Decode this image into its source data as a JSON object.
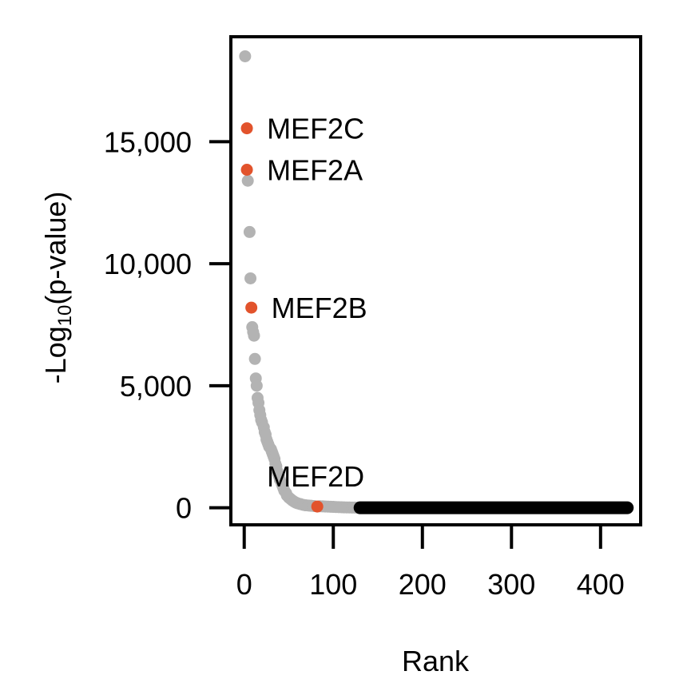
{
  "chart_data": {
    "type": "scatter",
    "xlabel": "Rank",
    "ylabel_prefix": "-Log",
    "ylabel_subscript": "10",
    "ylabel_suffix": "(p-value)",
    "xlim": [
      -15,
      445
    ],
    "ylim": [
      -700,
      19300
    ],
    "x_ticks": [
      {
        "value": 0,
        "label": "0"
      },
      {
        "value": 100,
        "label": "100"
      },
      {
        "value": 200,
        "label": "200"
      },
      {
        "value": 300,
        "label": "300"
      },
      {
        "value": 400,
        "label": "400"
      }
    ],
    "y_ticks": [
      {
        "value": 0,
        "label": "0"
      },
      {
        "value": 5000,
        "label": "5,000"
      },
      {
        "value": 10000,
        "label": "10,000"
      },
      {
        "value": 15000,
        "label": "15,000"
      }
    ],
    "colors": {
      "background_points": "#b3b3b3",
      "highlight_points": "#e2532c",
      "significant_low_points": "#000000"
    },
    "background_points": [
      [
        1,
        18500
      ],
      [
        4,
        13400
      ],
      [
        6,
        11300
      ],
      [
        7,
        9400
      ],
      [
        9,
        7400
      ],
      [
        10,
        7200
      ],
      [
        11,
        7050
      ],
      [
        12,
        6100
      ],
      [
        13,
        5300
      ],
      [
        14,
        5000
      ],
      [
        15,
        4500
      ],
      [
        16,
        4300
      ],
      [
        17,
        4000
      ],
      [
        18,
        3800
      ],
      [
        19,
        3600
      ],
      [
        20,
        3500
      ],
      [
        22,
        3300
      ],
      [
        23,
        3100
      ],
      [
        24,
        3000
      ],
      [
        25,
        2800
      ],
      [
        26,
        2700
      ],
      [
        27,
        2600
      ],
      [
        28,
        2500
      ],
      [
        30,
        2400
      ],
      [
        31,
        2300
      ],
      [
        32,
        2200
      ],
      [
        33,
        2100
      ],
      [
        34,
        2000
      ],
      [
        35,
        1800
      ],
      [
        36,
        1700
      ],
      [
        37,
        1500
      ],
      [
        38,
        1400
      ],
      [
        39,
        1300
      ],
      [
        40,
        1150
      ],
      [
        42,
        1000
      ],
      [
        43,
        900
      ],
      [
        44,
        800
      ],
      [
        45,
        700
      ],
      [
        47,
        600
      ],
      [
        48,
        500
      ],
      [
        50,
        420
      ],
      [
        52,
        360
      ],
      [
        54,
        300
      ],
      [
        56,
        250
      ],
      [
        58,
        210
      ],
      [
        60,
        180
      ],
      [
        63,
        150
      ],
      [
        66,
        120
      ],
      [
        69,
        100
      ],
      [
        72,
        90
      ],
      [
        75,
        80
      ],
      [
        78,
        70
      ],
      [
        85,
        60
      ],
      [
        88,
        55
      ],
      [
        91,
        50
      ],
      [
        94,
        45
      ],
      [
        97,
        40
      ],
      [
        100,
        35
      ],
      [
        103,
        30
      ],
      [
        106,
        25
      ],
      [
        109,
        20
      ],
      [
        112,
        15
      ],
      [
        115,
        12
      ],
      [
        118,
        10
      ],
      [
        121,
        8
      ],
      [
        124,
        6
      ],
      [
        127,
        5
      ]
    ],
    "significant_range": {
      "from": 130,
      "to": 430,
      "value": 0
    },
    "highlights": [
      {
        "label": "MEF2C",
        "x": 3,
        "y": 15550,
        "label_pos": "right"
      },
      {
        "label": "MEF2A",
        "x": 3,
        "y": 13850,
        "label_pos": "right"
      },
      {
        "label": "MEF2B",
        "x": 8,
        "y": 8200,
        "label_pos": "right"
      },
      {
        "label": "MEF2D",
        "x": 82,
        "y": 50,
        "label_pos": "above"
      }
    ]
  }
}
